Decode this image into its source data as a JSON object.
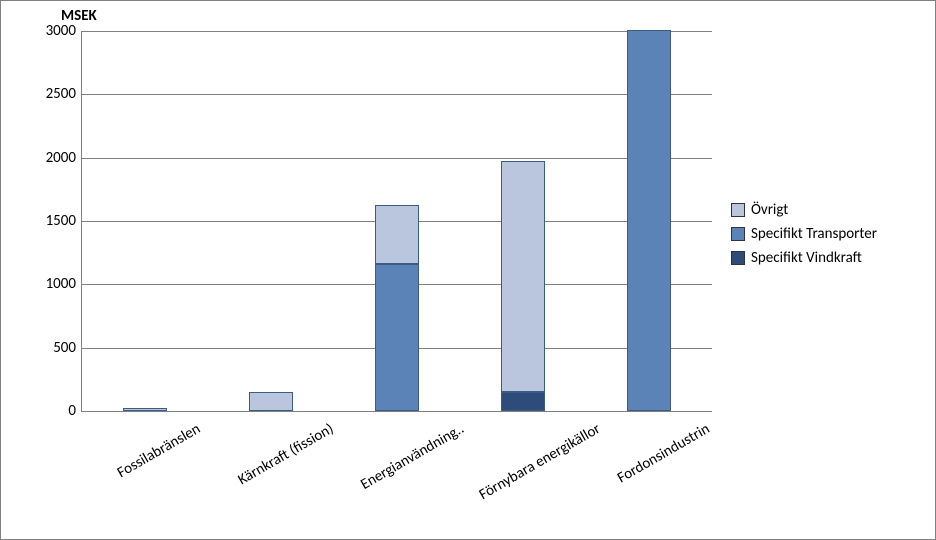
{
  "chart": {
    "type": "stacked-bar",
    "title_y": "MSEK",
    "title_fontsize": 15,
    "title_fontweight": "bold",
    "background_color": "#ffffff",
    "frame_border_color": "#808080",
    "grid_color": "#808080",
    "axis_color": "#808080",
    "label_fontsize": 15,
    "y": {
      "min": 0,
      "max": 3000,
      "tick_step": 500,
      "ticks": [
        0,
        500,
        1000,
        1500,
        2000,
        2500,
        3000
      ]
    },
    "x": {
      "rotation_deg": -30,
      "categories": [
        "Fossilabränslen",
        "Kärnkraft (fission)",
        "Energianvändning..",
        "Förnybara energikällor",
        "Fordonsindustrin"
      ]
    },
    "series": [
      {
        "key": "ovrigt",
        "label": "Övrigt",
        "color": "#b9c6de"
      },
      {
        "key": "transporter",
        "label": "Specifikt Transporter",
        "color": "#5b83b8"
      },
      {
        "key": "vindkraft",
        "label": "Specifikt Vindkraft",
        "color": "#2e4c7a"
      }
    ],
    "bar_width_ratio": 0.35,
    "stack_order_bottom_to_top": [
      "vindkraft",
      "transporter",
      "ovrigt"
    ],
    "data": [
      {
        "category": "Fossilabränslen",
        "vindkraft": 0,
        "transporter": 0,
        "ovrigt": 20
      },
      {
        "category": "Kärnkraft (fission)",
        "vindkraft": 0,
        "transporter": 0,
        "ovrigt": 150
      },
      {
        "category": "Energianvändning..",
        "vindkraft": 0,
        "transporter": 1160,
        "ovrigt": 470
      },
      {
        "category": "Förnybara energikällor",
        "vindkraft": 150,
        "transporter": 0,
        "ovrigt": 1820
      },
      {
        "category": "Fordonsindustrin",
        "vindkraft": 0,
        "transporter": 3010,
        "ovrigt": 0
      }
    ]
  }
}
